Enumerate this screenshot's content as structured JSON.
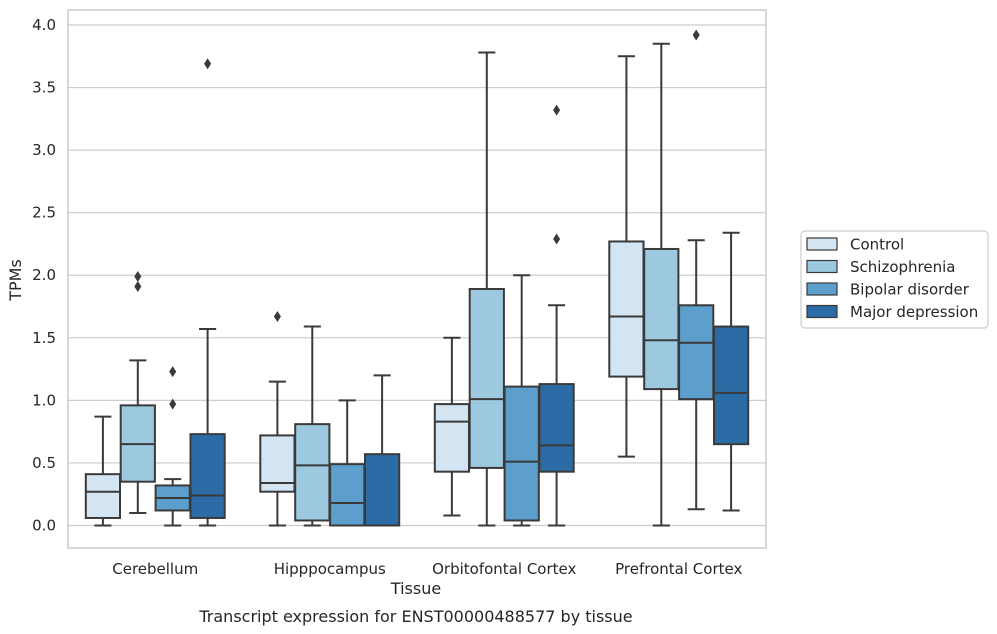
{
  "chart_data": {
    "type": "box",
    "title": "",
    "caption": "Transcript expression for ENST00000488577 by tissue",
    "xlabel": "Tissue",
    "ylabel": "TPMs",
    "ylim": [
      -0.18,
      4.12
    ],
    "yticks": [
      0.0,
      0.5,
      1.0,
      1.5,
      2.0,
      2.5,
      3.0,
      3.5,
      4.0
    ],
    "ytick_labels": [
      "0.0",
      "0.5",
      "1.0",
      "1.5",
      "2.0",
      "2.5",
      "3.0",
      "3.5",
      "4.0"
    ],
    "grid": "horizontal",
    "legend_position": "right",
    "categories": [
      "Cerebellum",
      "Hipppocampus",
      "Orbitofontal Cortex",
      "Prefrontal Cortex"
    ],
    "series": [
      {
        "name": "Control",
        "color": "#d3e4f3",
        "boxes": [
          {
            "whislo": 0.0,
            "q1": 0.06,
            "med": 0.27,
            "q3": 0.41,
            "whishi": 0.87,
            "fliers": []
          },
          {
            "whislo": 0.0,
            "q1": 0.27,
            "med": 0.34,
            "q3": 0.72,
            "whishi": 1.15,
            "fliers": [
              1.67
            ]
          },
          {
            "whislo": 0.08,
            "q1": 0.43,
            "med": 0.83,
            "q3": 0.97,
            "whishi": 1.5,
            "fliers": []
          },
          {
            "whislo": 0.55,
            "q1": 1.19,
            "med": 1.67,
            "q3": 2.27,
            "whishi": 3.75,
            "fliers": []
          }
        ]
      },
      {
        "name": "Schizophrenia",
        "color": "#9cc9e0",
        "boxes": [
          {
            "whislo": 0.1,
            "q1": 0.35,
            "med": 0.65,
            "q3": 0.96,
            "whishi": 1.32,
            "fliers": [
              1.91,
              1.99
            ]
          },
          {
            "whislo": 0.0,
            "q1": 0.04,
            "med": 0.48,
            "q3": 0.81,
            "whishi": 1.59,
            "fliers": []
          },
          {
            "whislo": 0.0,
            "q1": 0.46,
            "med": 1.01,
            "q3": 1.89,
            "whishi": 3.78,
            "fliers": []
          },
          {
            "whislo": 0.0,
            "q1": 1.09,
            "med": 1.48,
            "q3": 2.21,
            "whishi": 3.85,
            "fliers": []
          }
        ]
      },
      {
        "name": "Bipolar disorder",
        "color": "#5c9fcc",
        "boxes": [
          {
            "whislo": 0.0,
            "q1": 0.12,
            "med": 0.22,
            "q3": 0.32,
            "whishi": 0.37,
            "fliers": [
              0.97,
              1.23
            ]
          },
          {
            "whislo": 0.0,
            "q1": 0.0,
            "med": 0.18,
            "q3": 0.49,
            "whishi": 1.0,
            "fliers": []
          },
          {
            "whislo": 0.0,
            "q1": 0.04,
            "med": 0.51,
            "q3": 1.11,
            "whishi": 2.0,
            "fliers": []
          },
          {
            "whislo": 0.13,
            "q1": 1.01,
            "med": 1.46,
            "q3": 1.76,
            "whishi": 2.28,
            "fliers": [
              3.92
            ]
          }
        ]
      },
      {
        "name": "Major depression",
        "color": "#2c6ca6",
        "boxes": [
          {
            "whislo": 0.0,
            "q1": 0.06,
            "med": 0.24,
            "q3": 0.73,
            "whishi": 1.57,
            "fliers": [
              3.69
            ]
          },
          {
            "whislo": 0.0,
            "q1": 0.0,
            "med": 0.0,
            "q3": 0.57,
            "whishi": 1.2,
            "fliers": []
          },
          {
            "whislo": 0.0,
            "q1": 0.43,
            "med": 0.64,
            "q3": 1.13,
            "whishi": 1.76,
            "fliers": [
              2.29,
              3.32
            ]
          },
          {
            "whislo": 0.12,
            "q1": 0.65,
            "med": 1.06,
            "q3": 1.59,
            "whishi": 2.34,
            "fliers": []
          }
        ]
      }
    ]
  }
}
